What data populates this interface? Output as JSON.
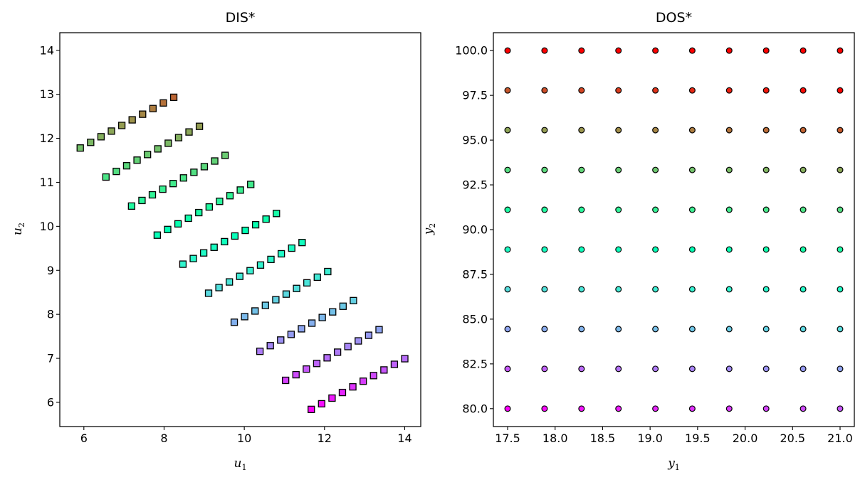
{
  "chart_data": [
    {
      "type": "scatter",
      "title": "DIS*",
      "xlabel": "u",
      "xlabel_sub": "1",
      "ylabel": "u",
      "ylabel_sub": "2",
      "xlim": [
        5.4,
        14.4
      ],
      "ylim": [
        5.45,
        14.4
      ],
      "xticks": [
        6,
        8,
        10,
        12,
        14
      ],
      "xtick_labels": [
        "6",
        "8",
        "10",
        "12",
        "14"
      ],
      "yticks": [
        6,
        7,
        8,
        9,
        10,
        11,
        12,
        13,
        14
      ],
      "ytick_labels": [
        "6",
        "7",
        "8",
        "9",
        "10",
        "11",
        "12",
        "13",
        "14"
      ],
      "grid": false,
      "marker": "square",
      "colormap": "rainbow",
      "levels": 10,
      "series_rule": "level k (0 = bottom, 9 = top): 10 points, u1 = 11.67 - 0.64k + 0.259j, u2 = 5.84 + 0.66k + 0.128j, j = 0..9"
    },
    {
      "type": "scatter",
      "title": "DOS*",
      "xlabel": "y",
      "xlabel_sub": "1",
      "ylabel": "y",
      "ylabel_sub": "2",
      "xlim": [
        17.35,
        21.15
      ],
      "ylim": [
        79.0,
        101.0
      ],
      "xticks": [
        17.5,
        18.0,
        18.5,
        19.0,
        19.5,
        20.0,
        20.5,
        21.0
      ],
      "xtick_labels": [
        "17.5",
        "18.0",
        "18.5",
        "19.0",
        "19.5",
        "20.0",
        "20.5",
        "21.0"
      ],
      "yticks": [
        80.0,
        82.5,
        85.0,
        87.5,
        90.0,
        92.5,
        95.0,
        97.5,
        100.0
      ],
      "ytick_labels": [
        "80.0",
        "82.5",
        "85.0",
        "87.5",
        "90.0",
        "92.5",
        "95.0",
        "97.5",
        "100.0"
      ],
      "grid": false,
      "marker": "circle",
      "colormap": "rainbow",
      "x_values": [
        17.5,
        17.889,
        18.278,
        18.667,
        19.056,
        19.444,
        19.833,
        20.222,
        20.611,
        21.0
      ],
      "y_values": [
        80.0,
        82.222,
        84.444,
        86.667,
        88.889,
        91.111,
        93.333,
        95.556,
        97.778,
        100.0
      ]
    }
  ]
}
